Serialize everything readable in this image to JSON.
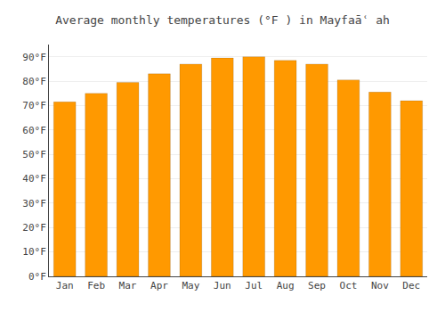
{
  "chart_data": {
    "type": "bar",
    "title": "Average monthly temperatures (°F ) in Mayfaāʿ ah",
    "categories": [
      "Jan",
      "Feb",
      "Mar",
      "Apr",
      "May",
      "Jun",
      "Jul",
      "Aug",
      "Sep",
      "Oct",
      "Nov",
      "Dec"
    ],
    "values": [
      71.5,
      75.0,
      79.5,
      83.0,
      87.0,
      89.5,
      90.0,
      88.5,
      87.0,
      80.5,
      75.5,
      72.0
    ],
    "color": "#FF9900",
    "ylim": [
      0,
      95
    ],
    "yticks": [
      {
        "value": 0,
        "label": "0°F"
      },
      {
        "value": 10,
        "label": "10°F"
      },
      {
        "value": 20,
        "label": "20°F"
      },
      {
        "value": 30,
        "label": "30°F"
      },
      {
        "value": 40,
        "label": "40°F"
      },
      {
        "value": 50,
        "label": "50°F"
      },
      {
        "value": 60,
        "label": "60°F"
      },
      {
        "value": 70,
        "label": "70°F"
      },
      {
        "value": 80,
        "label": "80°F"
      },
      {
        "value": 90,
        "label": "90°F"
      }
    ],
    "grid": true
  }
}
